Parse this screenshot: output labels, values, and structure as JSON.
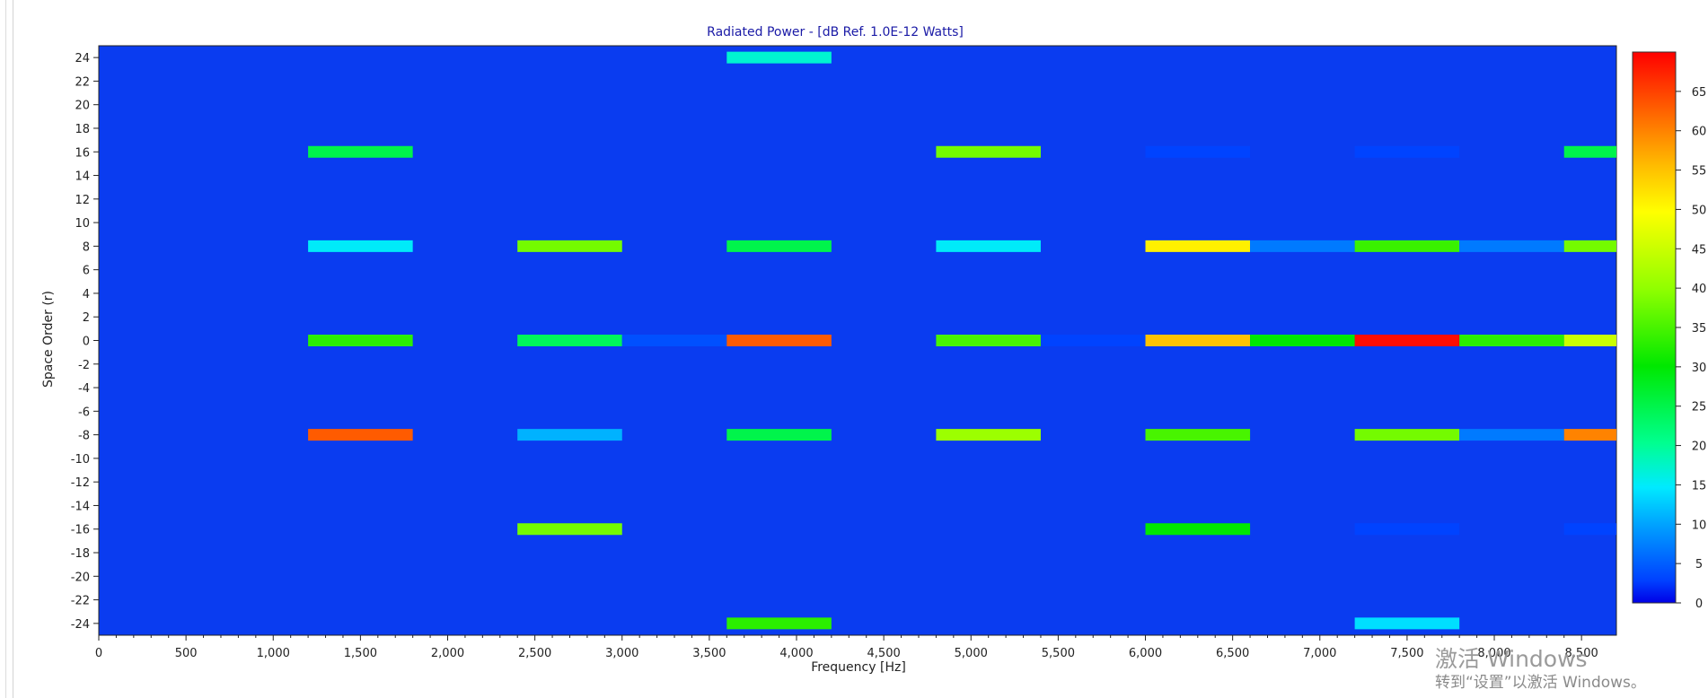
{
  "chart_data": {
    "type": "heatmap",
    "title": "Radiated Power - [dB Ref. 1.0E-12 Watts]",
    "xlabel": "Frequency [Hz]",
    "ylabel": "Space Order (r)",
    "xlim": [
      0,
      8700
    ],
    "ylim": [
      -25,
      25
    ],
    "x_ticks": [
      0,
      500,
      1000,
      1500,
      2000,
      2500,
      3000,
      3500,
      4000,
      4500,
      5000,
      5500,
      6000,
      6500,
      7000,
      7500,
      8000,
      8500
    ],
    "x_tick_labels": [
      "0",
      "500",
      "1,000",
      "1,500",
      "2,000",
      "2,500",
      "3,000",
      "3,500",
      "4,000",
      "4,500",
      "5,000",
      "5,500",
      "6,000",
      "6,500",
      "7,000",
      "7,500",
      "8,000",
      "8,500"
    ],
    "y_ticks": [
      24,
      22,
      20,
      18,
      16,
      14,
      12,
      10,
      8,
      6,
      4,
      2,
      0,
      -2,
      -4,
      -6,
      -8,
      -10,
      -12,
      -14,
      -16,
      -18,
      -20,
      -22,
      -24
    ],
    "y_tick_labels": [
      "24",
      "22",
      "20",
      "18",
      "16",
      "14",
      "12",
      "10",
      "8",
      "6",
      "4",
      "2",
      "0",
      "-2",
      "-4",
      "-6",
      "-8",
      "-10",
      "-12",
      "-14",
      "-16",
      "-18",
      "-20",
      "-22",
      "-24"
    ],
    "colorbar": {
      "range": [
        0,
        70
      ],
      "ticks": [
        0,
        5,
        10,
        15,
        20,
        25,
        30,
        35,
        40,
        45,
        50,
        55,
        60,
        65
      ],
      "tick_labels": [
        "0",
        "5",
        "10",
        "15",
        "20",
        "25",
        "30",
        "35",
        "40",
        "45",
        "50",
        "55",
        "60",
        "65"
      ]
    },
    "background_value": 0,
    "cells": [
      {
        "x0": 3600,
        "x1": 4200,
        "order": 24,
        "value": 17
      },
      {
        "x0": 1200,
        "x1": 1800,
        "order": 16,
        "value": 25
      },
      {
        "x0": 4800,
        "x1": 5400,
        "order": 16,
        "value": 38
      },
      {
        "x0": 6000,
        "x1": 6600,
        "order": 16,
        "value": 3
      },
      {
        "x0": 7200,
        "x1": 7800,
        "order": 16,
        "value": 3
      },
      {
        "x0": 8400,
        "x1": 8700,
        "order": 16,
        "value": 25
      },
      {
        "x0": 1200,
        "x1": 1800,
        "order": 8,
        "value": 15
      },
      {
        "x0": 2400,
        "x1": 3000,
        "order": 8,
        "value": 38
      },
      {
        "x0": 3600,
        "x1": 4200,
        "order": 8,
        "value": 25
      },
      {
        "x0": 4800,
        "x1": 5400,
        "order": 8,
        "value": 15
      },
      {
        "x0": 6000,
        "x1": 6600,
        "order": 8,
        "value": 51
      },
      {
        "x0": 6600,
        "x1": 7200,
        "order": 8,
        "value": 7
      },
      {
        "x0": 7200,
        "x1": 7800,
        "order": 8,
        "value": 34
      },
      {
        "x0": 7800,
        "x1": 8400,
        "order": 8,
        "value": 7
      },
      {
        "x0": 8400,
        "x1": 8700,
        "order": 8,
        "value": 38
      },
      {
        "x0": 1200,
        "x1": 1800,
        "order": 0,
        "value": 33
      },
      {
        "x0": 2400,
        "x1": 3000,
        "order": 0,
        "value": 24
      },
      {
        "x0": 3000,
        "x1": 3600,
        "order": 0,
        "value": 4
      },
      {
        "x0": 3600,
        "x1": 4200,
        "order": 0,
        "value": 63
      },
      {
        "x0": 4800,
        "x1": 5400,
        "order": 0,
        "value": 35
      },
      {
        "x0": 5400,
        "x1": 6000,
        "order": 0,
        "value": 3
      },
      {
        "x0": 6000,
        "x1": 6600,
        "order": 0,
        "value": 55
      },
      {
        "x0": 6600,
        "x1": 7200,
        "order": 0,
        "value": 30
      },
      {
        "x0": 7200,
        "x1": 7800,
        "order": 0,
        "value": 69
      },
      {
        "x0": 7800,
        "x1": 8400,
        "order": 0,
        "value": 33
      },
      {
        "x0": 8400,
        "x1": 8700,
        "order": 0,
        "value": 45
      },
      {
        "x0": 1200,
        "x1": 1800,
        "order": -8,
        "value": 63
      },
      {
        "x0": 2400,
        "x1": 3000,
        "order": -8,
        "value": 11
      },
      {
        "x0": 3600,
        "x1": 4200,
        "order": -8,
        "value": 25
      },
      {
        "x0": 4800,
        "x1": 5400,
        "order": -8,
        "value": 41
      },
      {
        "x0": 6000,
        "x1": 6600,
        "order": -8,
        "value": 35
      },
      {
        "x0": 7200,
        "x1": 7800,
        "order": -8,
        "value": 38
      },
      {
        "x0": 7800,
        "x1": 8400,
        "order": -8,
        "value": 7
      },
      {
        "x0": 8400,
        "x1": 8700,
        "order": -8,
        "value": 60
      },
      {
        "x0": 2400,
        "x1": 3000,
        "order": -16,
        "value": 38
      },
      {
        "x0": 6000,
        "x1": 6600,
        "order": -16,
        "value": 30
      },
      {
        "x0": 7200,
        "x1": 7800,
        "order": -16,
        "value": 3
      },
      {
        "x0": 8400,
        "x1": 8700,
        "order": -16,
        "value": 3
      },
      {
        "x0": 3600,
        "x1": 4200,
        "order": -24,
        "value": 33
      },
      {
        "x0": 7200,
        "x1": 7800,
        "order": -24,
        "value": 14
      }
    ]
  },
  "watermark": {
    "line1": "激活 Windows",
    "line2": "转到“设置”以激活 Windows。"
  }
}
